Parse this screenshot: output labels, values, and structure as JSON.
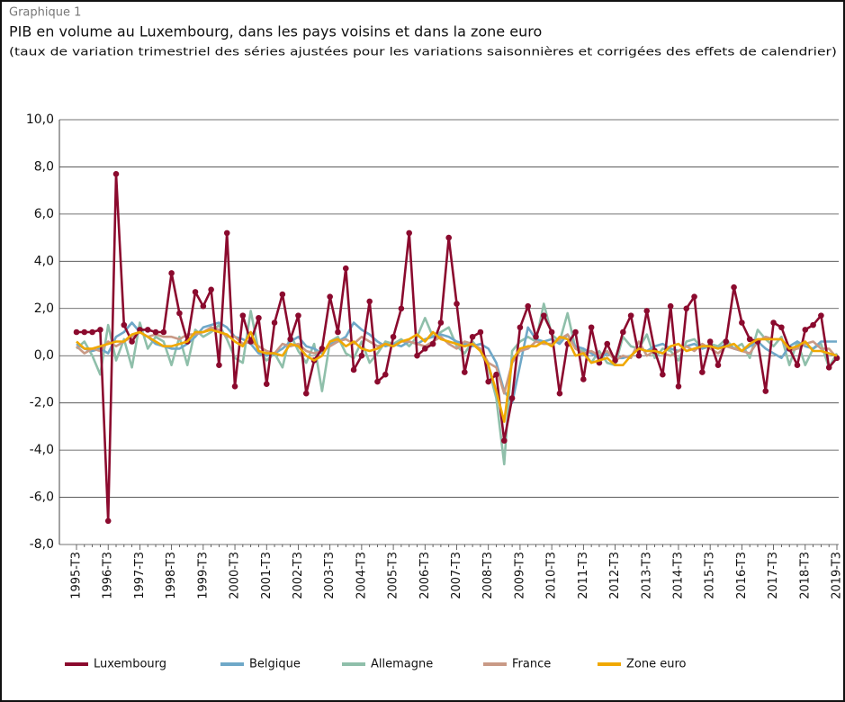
{
  "header": "Graphique 1",
  "chart_data": {
    "type": "line",
    "title": "PIB en volume au Luxembourg, dans les pays voisins et dans la zone euro",
    "subtitle": "(taux de variation trimestriel des séries ajustées pour les variations saisonnières et corrigées des effets de calendrier)",
    "categories": [
      "1995-T3",
      null,
      null,
      null,
      "1996-T3",
      null,
      null,
      null,
      "1997-T3",
      null,
      null,
      null,
      "1998-T3",
      null,
      null,
      null,
      "1999-T3",
      null,
      null,
      null,
      "2000-T3",
      null,
      null,
      null,
      "2001-T3",
      null,
      null,
      null,
      "2002-T3",
      null,
      null,
      null,
      "2003-T3",
      null,
      null,
      null,
      "2004-T3",
      null,
      null,
      null,
      "2005-T3",
      null,
      null,
      null,
      "2006-T3",
      null,
      null,
      null,
      "2007-T3",
      null,
      null,
      null,
      "2008-T3",
      null,
      null,
      null,
      "2009-T3",
      null,
      null,
      null,
      "2010-T3",
      null,
      null,
      null,
      "2011-T3",
      null,
      null,
      null,
      "2012-T3",
      null,
      null,
      null,
      "2013-T3",
      null,
      null,
      null,
      "2014-T3",
      null,
      null,
      null,
      "2015-T3",
      null,
      null,
      null,
      "2016-T3",
      null,
      null,
      null,
      "2017-T3",
      null,
      null,
      null,
      "2018-T3",
      null,
      null,
      null,
      "2019-T3"
    ],
    "series": [
      {
        "name": "Luxembourg",
        "color": "#8b0a2e",
        "markers": true,
        "values": [
          1.0,
          1.0,
          1.0,
          1.1,
          -7.0,
          7.7,
          1.3,
          0.6,
          1.1,
          1.1,
          1.0,
          1.0,
          3.5,
          1.8,
          0.6,
          2.7,
          2.1,
          2.8,
          -0.4,
          5.2,
          -1.3,
          1.7,
          0.6,
          1.6,
          -1.2,
          1.4,
          2.6,
          0.7,
          1.7,
          -1.6,
          -0.2,
          0.3,
          2.5,
          1.0,
          3.7,
          -0.6,
          0.0,
          2.3,
          -1.1,
          -0.8,
          0.8,
          2.0,
          5.2,
          0.0,
          0.3,
          0.5,
          1.4,
          5.0,
          2.2,
          -0.7,
          0.8,
          1.0,
          -1.1,
          -0.8,
          -3.6,
          -1.8,
          1.2,
          2.1,
          0.8,
          1.7,
          1.0,
          -1.6,
          0.5,
          1.0,
          -1.0,
          1.2,
          -0.3,
          0.5,
          -0.2,
          1.0,
          1.7,
          0.0,
          1.9,
          0.2,
          -0.8,
          2.1,
          -1.3,
          2.0,
          2.5,
          -0.7,
          0.6,
          -0.4,
          0.6,
          2.9,
          1.4,
          0.7,
          0.6,
          -1.5,
          1.4,
          1.2,
          0.3,
          -0.4,
          1.1,
          1.3,
          1.7,
          -0.5,
          -0.1
        ]
      },
      {
        "name": "Belgique",
        "color": "#6fa8c8",
        "values": [
          0.5,
          0.3,
          0.2,
          0.3,
          0.1,
          0.8,
          1.0,
          1.4,
          1.0,
          0.8,
          0.5,
          0.4,
          0.3,
          0.3,
          0.5,
          0.8,
          1.2,
          1.3,
          1.4,
          1.2,
          0.8,
          0.7,
          0.5,
          0.1,
          0.0,
          0.1,
          0.3,
          0.6,
          0.8,
          0.4,
          0.3,
          0.1,
          0.5,
          0.6,
          0.8,
          1.4,
          1.1,
          0.9,
          0.6,
          0.4,
          0.5,
          0.4,
          0.6,
          0.5,
          0.7,
          0.8,
          0.9,
          0.8,
          0.6,
          0.5,
          0.4,
          0.5,
          0.3,
          -0.3,
          -1.5,
          -2.0,
          -0.4,
          1.2,
          0.7,
          0.6,
          0.7,
          0.5,
          0.9,
          0.4,
          0.3,
          0.1,
          -0.1,
          0.1,
          -0.1,
          -0.1,
          0.0,
          0.3,
          0.2,
          0.4,
          0.5,
          0.3,
          0.2,
          0.4,
          0.5,
          0.3,
          0.4,
          0.3,
          0.5,
          0.3,
          0.2,
          0.4,
          0.6,
          0.3,
          0.1,
          -0.1,
          0.4,
          0.6,
          0.4,
          0.3,
          0.6,
          0.6,
          0.6
        ]
      },
      {
        "name": "Allemagne",
        "color": "#8fbfaa",
        "values": [
          0.3,
          0.6,
          0.0,
          -0.8,
          1.3,
          -0.2,
          0.7,
          -0.5,
          1.4,
          0.3,
          0.8,
          0.6,
          -0.4,
          0.8,
          -0.4,
          1.1,
          0.8,
          1.0,
          1.3,
          0.7,
          -0.1,
          -0.3,
          1.9,
          0.2,
          -0.2,
          0.1,
          -0.5,
          0.9,
          0.2,
          -0.3,
          0.5,
          -1.5,
          0.6,
          0.8,
          0.1,
          -0.1,
          0.6,
          -0.3,
          0.1,
          0.6,
          0.5,
          0.7,
          0.4,
          0.8,
          1.6,
          0.8,
          1.0,
          1.2,
          0.4,
          0.1,
          0.6,
          0.2,
          -0.5,
          -1.8,
          -4.6,
          0.2,
          0.6,
          0.8,
          0.6,
          2.2,
          0.9,
          0.6,
          1.8,
          0.3,
          0.2,
          -0.3,
          0.2,
          -0.3,
          -0.4,
          0.8,
          0.4,
          0.3,
          0.9,
          -0.1,
          0.3,
          0.2,
          -0.2,
          0.6,
          0.7,
          0.3,
          0.5,
          0.4,
          0.7,
          0.3,
          0.5,
          -0.1,
          1.1,
          0.7,
          0.4,
          0.8,
          -0.4,
          0.6,
          -0.4,
          0.3,
          0.5,
          -0.5,
          0.1
        ]
      },
      {
        "name": "France",
        "color": "#c99a86",
        "values": [
          0.4,
          0.1,
          0.3,
          0.2,
          0.6,
          0.4,
          0.6,
          0.8,
          1.0,
          0.8,
          0.9,
          0.8,
          0.8,
          0.7,
          0.9,
          0.9,
          1.0,
          1.2,
          1.1,
          0.8,
          0.8,
          0.5,
          0.6,
          0.4,
          0.2,
          0.1,
          0.5,
          0.4,
          0.5,
          0.2,
          0.1,
          0.2,
          0.4,
          0.6,
          0.7,
          0.5,
          0.8,
          0.6,
          0.4,
          0.5,
          0.4,
          0.6,
          0.6,
          0.5,
          0.4,
          0.6,
          0.8,
          0.5,
          0.3,
          0.6,
          0.5,
          0.3,
          -0.3,
          -0.5,
          -1.6,
          -0.3,
          0.2,
          0.3,
          0.6,
          0.5,
          0.5,
          0.7,
          0.9,
          0.3,
          0.1,
          0.2,
          0.0,
          0.2,
          -0.2,
          0.0,
          -0.1,
          0.6,
          0.0,
          0.2,
          0.1,
          0.0,
          0.2,
          0.4,
          0.2,
          0.5,
          0.3,
          0.1,
          0.4,
          0.3,
          0.2,
          0.1,
          0.6,
          0.8,
          0.7,
          0.7,
          0.2,
          0.3,
          0.5,
          0.6,
          0.3,
          0.3,
          -0.1
        ]
      },
      {
        "name": "Zone euro",
        "color": "#f0a800",
        "values": [
          0.6,
          0.3,
          0.3,
          0.4,
          0.5,
          0.6,
          0.6,
          0.9,
          1.0,
          0.8,
          0.6,
          0.4,
          0.4,
          0.5,
          0.6,
          1.0,
          1.0,
          1.1,
          1.0,
          0.9,
          0.6,
          0.4,
          1.0,
          0.2,
          0.1,
          0.1,
          0.0,
          0.5,
          0.4,
          0.0,
          -0.2,
          0.0,
          0.6,
          0.7,
          0.4,
          0.6,
          0.3,
          0.2,
          0.3,
          0.5,
          0.4,
          0.6,
          0.7,
          0.9,
          0.6,
          1.0,
          0.7,
          0.6,
          0.5,
          0.4,
          0.5,
          0.2,
          -0.4,
          -1.5,
          -2.8,
          -0.2,
          0.3,
          0.4,
          0.4,
          0.6,
          0.4,
          0.8,
          0.7,
          0.0,
          0.1,
          -0.3,
          -0.2,
          -0.1,
          -0.4,
          -0.4,
          0.0,
          0.3,
          0.2,
          0.2,
          0.1,
          0.4,
          0.5,
          0.2,
          0.3,
          0.4,
          0.4,
          0.3,
          0.4,
          0.5,
          0.2,
          0.5,
          0.7,
          0.7,
          0.7,
          0.7,
          0.3,
          0.4,
          0.6,
          0.2,
          0.2,
          0.1,
          0.0
        ]
      }
    ],
    "ylim": [
      -8,
      10
    ],
    "yticks": [
      {
        "value": -8,
        "label": "-8,0"
      },
      {
        "value": -6,
        "label": "-6,0"
      },
      {
        "value": -4,
        "label": "-4,0"
      },
      {
        "value": -2,
        "label": "-2,0"
      },
      {
        "value": 0,
        "label": "0,0"
      },
      {
        "value": 2,
        "label": "2,0"
      },
      {
        "value": 4,
        "label": "4,0"
      },
      {
        "value": 6,
        "label": "6,0"
      },
      {
        "value": 8,
        "label": "8,0"
      },
      {
        "value": 10,
        "label": "10,0"
      }
    ],
    "grid": true,
    "legend": "bottom"
  }
}
